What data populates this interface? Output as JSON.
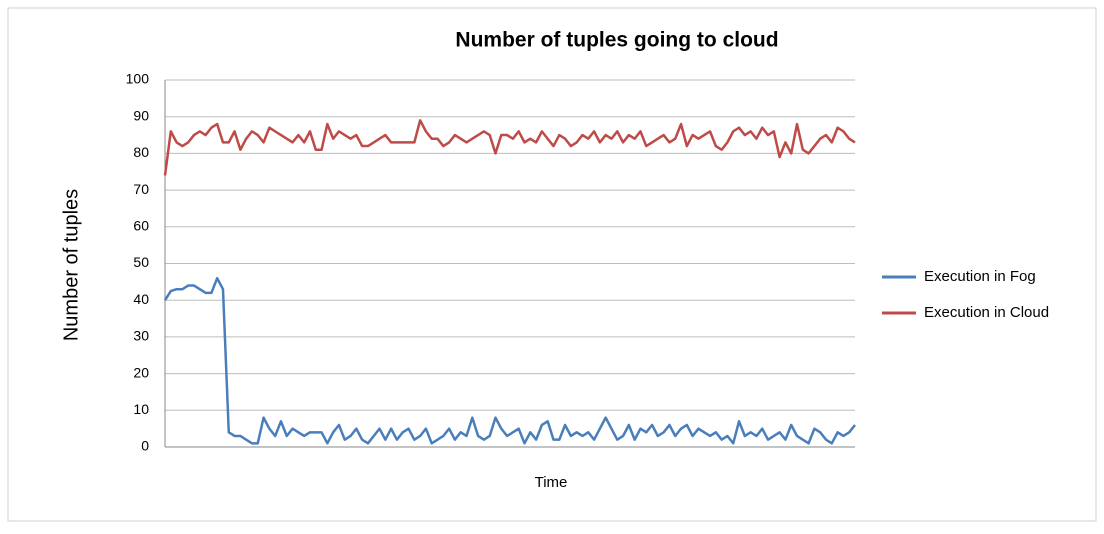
{
  "chart_data": {
    "type": "line",
    "title": "Number of tuples going to cloud",
    "xlabel": "Time",
    "ylabel": "Number of tuples",
    "categories": [
      null,
      null,
      null,
      null,
      null,
      null,
      null,
      null,
      null,
      null,
      null,
      null,
      null,
      null,
      null,
      null,
      null,
      null,
      null,
      null,
      null,
      null,
      null,
      null,
      null,
      null,
      null,
      null,
      null,
      null,
      null,
      null,
      null,
      null,
      null,
      null,
      null,
      null,
      null,
      null,
      null,
      null,
      null,
      null,
      null,
      null,
      null,
      null,
      null,
      null,
      null,
      null,
      null,
      null,
      null,
      null,
      null,
      null,
      null,
      null,
      null,
      null,
      null,
      null,
      null,
      null,
      null,
      null,
      null,
      null,
      null,
      null,
      null,
      null,
      null,
      null,
      null,
      null,
      null,
      null,
      null,
      null,
      null,
      null,
      null,
      null,
      null,
      null,
      null,
      null,
      null,
      null,
      null,
      null,
      null,
      null,
      null,
      null,
      null,
      null,
      null,
      null,
      null,
      null,
      null,
      null,
      null,
      null,
      null,
      null,
      null,
      null,
      null,
      null,
      null,
      null,
      null,
      null,
      null,
      null
    ],
    "series": [
      {
        "name": "Execution in Fog",
        "color": "#4a7ebb",
        "values": [
          40,
          42.5,
          43,
          43,
          44,
          44,
          43,
          42,
          42,
          46,
          43,
          4,
          3,
          3,
          2,
          1,
          1,
          8,
          5,
          3,
          7,
          3,
          5,
          4,
          3,
          4,
          4,
          4,
          1,
          4,
          6,
          2,
          3,
          5,
          2,
          1,
          3,
          5,
          2,
          5,
          2,
          4,
          5,
          2,
          3,
          5,
          1,
          2,
          3,
          5,
          2,
          4,
          3,
          8,
          3,
          2,
          3,
          8,
          5,
          3,
          4,
          5,
          1,
          4,
          2,
          6,
          7,
          2,
          2,
          6,
          3,
          4,
          3,
          4,
          2,
          5,
          8,
          5,
          2,
          3,
          6,
          2,
          5,
          4,
          6,
          3,
          4,
          6,
          3,
          5,
          6,
          3,
          5,
          4,
          3,
          4,
          2,
          3,
          1,
          7,
          3,
          4,
          3,
          5,
          2,
          3,
          4,
          2,
          6,
          3,
          2,
          1,
          5,
          4,
          2,
          1,
          4,
          3,
          4,
          6
        ]
      },
      {
        "name": "Execution in Cloud",
        "color": "#be4b48",
        "values": [
          74,
          86,
          83,
          82,
          83,
          85,
          86,
          85,
          87,
          88,
          83,
          83,
          86,
          81,
          84,
          86,
          85,
          83,
          87,
          86,
          85,
          84,
          83,
          85,
          83,
          86,
          81,
          81,
          88,
          84,
          86,
          85,
          84,
          85,
          82,
          82,
          83,
          84,
          85,
          83,
          83,
          83,
          83,
          83,
          89,
          86,
          84,
          84,
          82,
          83,
          85,
          84,
          83,
          84,
          85,
          86,
          85,
          80,
          85,
          85,
          84,
          86,
          83,
          84,
          83,
          86,
          84,
          82,
          85,
          84,
          82,
          83,
          85,
          84,
          86,
          83,
          85,
          84,
          86,
          83,
          85,
          84,
          86,
          82,
          83,
          84,
          85,
          83,
          84,
          88,
          82,
          85,
          84,
          85,
          86,
          82,
          81,
          83,
          86,
          87,
          85,
          86,
          84,
          87,
          85,
          86,
          79,
          83,
          80,
          88,
          81,
          80,
          82,
          84,
          85,
          83,
          87,
          86,
          84,
          83
        ]
      }
    ],
    "ylim": [
      0,
      100
    ],
    "yticks": [
      0,
      10,
      20,
      30,
      40,
      50,
      60,
      70,
      80,
      90,
      100
    ],
    "grid": true,
    "legend": "right"
  }
}
